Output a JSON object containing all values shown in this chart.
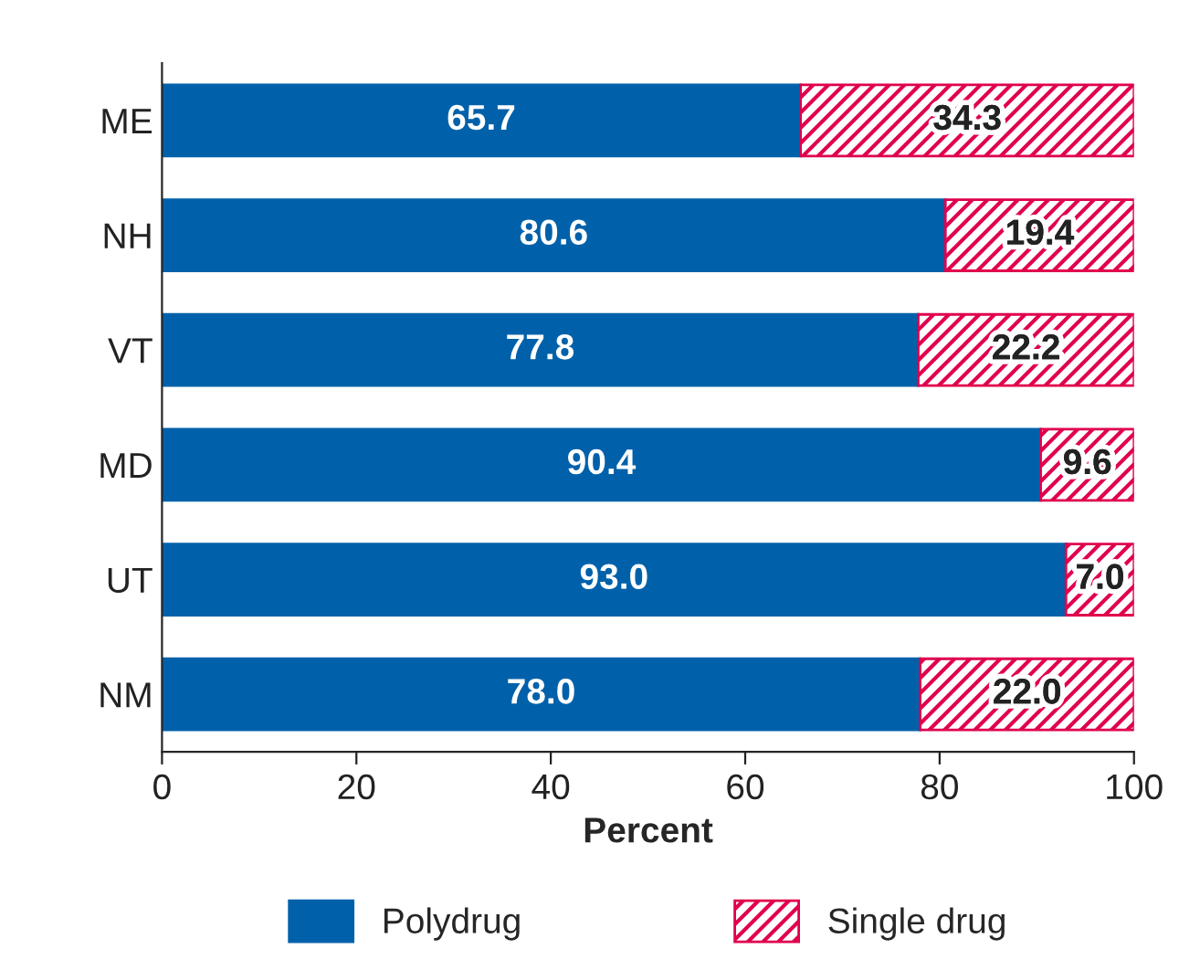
{
  "chart_data": {
    "type": "bar",
    "orientation": "horizontal",
    "stacked": true,
    "categories": [
      "ME",
      "NH",
      "VT",
      "MD",
      "UT",
      "NM"
    ],
    "series": [
      {
        "name": "Polydrug",
        "color": "#0061aa",
        "values": [
          65.7,
          80.6,
          77.8,
          90.4,
          93.0,
          78.0
        ],
        "value_labels": [
          "65.7",
          "80.6",
          "77.8",
          "90.4",
          "93.0",
          "78.0"
        ]
      },
      {
        "name": "Single drug",
        "color": "#e0004d",
        "values": [
          34.3,
          19.4,
          22.2,
          9.6,
          7.0,
          22.0
        ],
        "value_labels": [
          "34.3",
          "19.4",
          "22.2",
          "9.6",
          "7.0",
          "22.0"
        ]
      }
    ],
    "xlabel": "Percent",
    "xlim": [
      0,
      100
    ],
    "xticks": [
      0,
      20,
      40,
      60,
      80,
      100
    ],
    "grid": false,
    "legend": "bottom"
  }
}
